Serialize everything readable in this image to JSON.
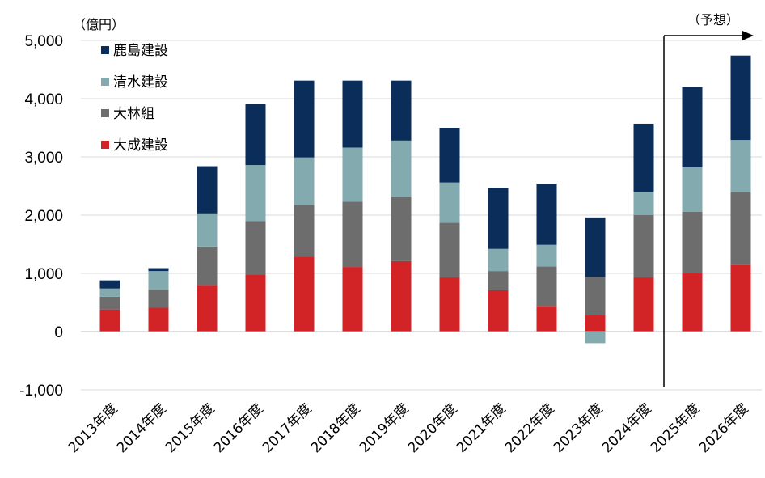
{
  "chart_data": {
    "type": "bar",
    "stacked": true,
    "unit_label": "（億円）",
    "forecast_label": "（予想）",
    "forecast_categories": [
      "2025年度",
      "2026年度"
    ],
    "categories": [
      "2013年度",
      "2014年度",
      "2015年度",
      "2016年度",
      "2017年度",
      "2018年度",
      "2019年度",
      "2020年度",
      "2021年度",
      "2022年度",
      "2023年度",
      "2024年度",
      "2025年度",
      "2026年度"
    ],
    "series": [
      {
        "name": "大成建設",
        "color": "#d22327",
        "values": [
          380,
          410,
          800,
          980,
          1290,
          1110,
          1210,
          930,
          710,
          440,
          290,
          930,
          1000,
          1140
        ]
      },
      {
        "name": "大林組",
        "color": "#6d6d6d",
        "values": [
          220,
          310,
          660,
          920,
          890,
          1120,
          1110,
          940,
          330,
          680,
          650,
          1070,
          1060,
          1250
        ]
      },
      {
        "name": "清水建設",
        "color": "#82aaaf",
        "values": [
          140,
          320,
          570,
          960,
          810,
          930,
          960,
          690,
          380,
          370,
          -200,
          400,
          760,
          900
        ]
      },
      {
        "name": "鹿島建設",
        "color": "#0a2d5a",
        "values": [
          140,
          50,
          810,
          1050,
          1320,
          1150,
          1030,
          940,
          1050,
          1050,
          1020,
          1170,
          1380,
          1450
        ]
      }
    ],
    "y_ticks": [
      "-1,000",
      "0",
      "1,000",
      "2,000",
      "3,000",
      "4,000",
      "5,000"
    ],
    "ylim": [
      -1000,
      5000
    ],
    "grid": "horizontal",
    "legend_position": "top-left"
  }
}
